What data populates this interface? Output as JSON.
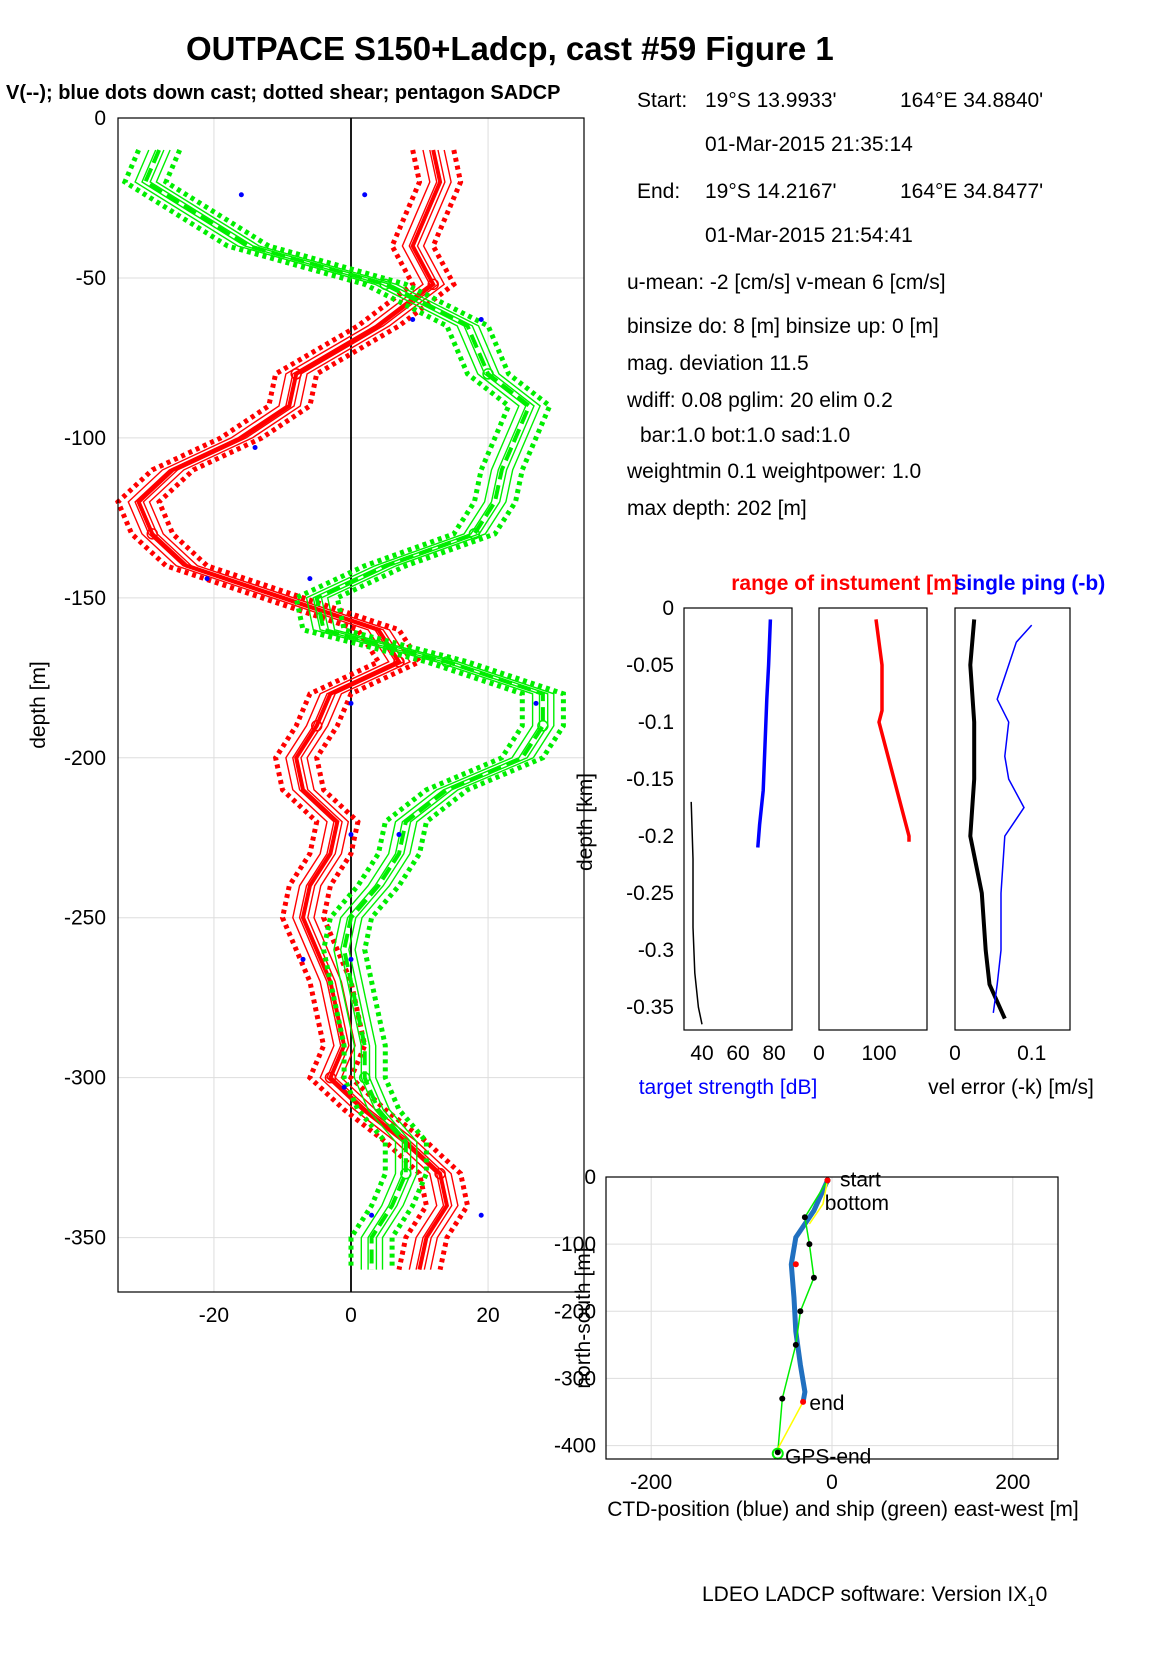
{
  "figure": {
    "title": "OUTPACE S150+Ladcp, cast #59  Figure 1",
    "subtitle": "V(--); blue dots down cast; dotted shear; pentagon SADCP",
    "footer_main": "LDEO LADCP software: Version IX",
    "footer_sub": "1",
    "footer_end": "0"
  },
  "info": {
    "start_label": "Start:",
    "start_lat": "19°S 13.9933'",
    "start_lon": "164°E 34.8840'",
    "start_time": "01-Mar-2015 21:35:14",
    "end_label": "End:",
    "end_lat": "19°S 14.2167'",
    "end_lon": "164°E 34.8477'",
    "end_time": "01-Mar-2015 21:54:41",
    "means": "u-mean:  -2 [cm/s]    v-mean   6 [cm/s]",
    "binsize": "binsize do: 8 [m]  binsize up:  0 [m]",
    "magdev": "mag. deviation 11.5",
    "wdiff": "wdiff: 0.08  pglim: 20  elim 0.2",
    "bar": "bar:1.0 bot:1.0 sad:1.0",
    "weight": "weightmin 0.1  weightpower: 1.0",
    "maxdepth": "max depth: 202 [m]"
  },
  "colors": {
    "u": "#ff0000",
    "v": "#00ee00",
    "blue": "#0000ff",
    "black": "#000000",
    "grid": "#dddddd",
    "yellow": "#ffff00",
    "ctd": "#2070c0"
  },
  "chart_data": [
    {
      "type": "line",
      "name": "velocity-profile",
      "ylabel": "depth [m]",
      "xlabel": "",
      "xlim": [
        -34,
        34
      ],
      "ylim": [
        -367,
        0
      ],
      "xticks": [
        "-20",
        "0",
        "20"
      ],
      "yticks": [
        "0",
        "-50",
        "-100",
        "-150",
        "-200",
        "-250",
        "-300",
        "-350"
      ],
      "depth": [
        -10,
        -20,
        -40,
        -52,
        -65,
        -80,
        -90,
        -100,
        -110,
        -120,
        -130,
        -140,
        -150,
        -160,
        -170,
        -180,
        -190,
        -200,
        -210,
        -220,
        -230,
        -240,
        -250,
        -260,
        -270,
        -280,
        -290,
        -300,
        -310,
        -320,
        -330,
        -340,
        -350,
        -360
      ],
      "series": [
        {
          "color": "#ff0000",
          "values": [
            12,
            13,
            9,
            12,
            4,
            -8,
            -9,
            -16,
            -26,
            -31,
            -29,
            -24,
            -10,
            4,
            7,
            -3,
            -5,
            -8,
            -7,
            -2,
            -3,
            -6,
            -7,
            -5,
            -3,
            -2,
            -1,
            -3,
            2,
            8,
            13,
            14,
            11,
            10
          ]
        },
        {
          "color": "#00ee00",
          "values": [
            -28,
            -30,
            -15,
            5,
            17,
            20,
            26,
            24,
            22,
            21,
            18,
            5,
            -5,
            -4,
            14,
            28,
            28,
            25,
            14,
            8,
            7,
            4,
            0,
            -1,
            0,
            1,
            2,
            2,
            4,
            8,
            8,
            6,
            3,
            3
          ]
        }
      ],
      "blue_dots": [
        [
          -16,
          -24
        ],
        [
          2,
          -24
        ],
        [
          9,
          -63
        ],
        [
          19,
          -63
        ],
        [
          -14,
          -103
        ],
        [
          -21,
          -144
        ],
        [
          -6,
          -144
        ],
        [
          0,
          -183
        ],
        [
          27,
          -183
        ],
        [
          0,
          -224
        ],
        [
          7,
          -224
        ],
        [
          -7,
          -263
        ],
        [
          0,
          -263
        ],
        [
          -1,
          -303
        ],
        [
          3,
          -343
        ],
        [
          19,
          -343
        ]
      ]
    },
    {
      "type": "line",
      "name": "target-strength",
      "xlabel": "target strength [dB]",
      "ylabel": "depth [km]",
      "xlim": [
        30,
        90
      ],
      "ylim": [
        -0.37,
        0
      ],
      "xticks": [
        "40",
        "60",
        "80"
      ],
      "yticks": [
        "0",
        "-0.05",
        "-0.1",
        "-0.15",
        "-0.2",
        "-0.25",
        "-0.3",
        "-0.35"
      ],
      "series": [
        {
          "color": "#0000ff",
          "depth": [
            -0.01,
            -0.05,
            -0.08,
            -0.12,
            -0.16,
            -0.19,
            -0.21
          ],
          "values": [
            78,
            77,
            76,
            75,
            74,
            72,
            71
          ]
        },
        {
          "color": "#000000",
          "depth": [
            -0.17,
            -0.22,
            -0.28,
            -0.32,
            -0.35,
            -0.365
          ],
          "values": [
            34,
            35,
            35,
            36,
            38,
            40
          ]
        }
      ]
    },
    {
      "type": "line",
      "name": "range-of-instrument",
      "title": "range of instument [m]",
      "xlim": [
        0,
        180
      ],
      "ylim": [
        -0.37,
        0
      ],
      "xticks": [
        "0",
        "100"
      ],
      "series": [
        {
          "color": "#ff0000",
          "depth": [
            -0.01,
            -0.03,
            -0.05,
            -0.09,
            -0.1,
            -0.12,
            -0.15,
            -0.18,
            -0.2,
            -0.205
          ],
          "values": [
            95,
            100,
            105,
            105,
            100,
            110,
            125,
            140,
            150,
            150
          ]
        }
      ]
    },
    {
      "type": "line",
      "name": "velocity-error",
      "title": "single ping (-b)",
      "xlabel": "vel error (-k) [m/s]",
      "xlim": [
        0,
        0.15
      ],
      "ylim": [
        -0.37,
        0
      ],
      "xticks": [
        "0",
        "0.1"
      ],
      "series": [
        {
          "color": "#000000",
          "depth": [
            -0.01,
            -0.05,
            -0.1,
            -0.15,
            -0.2,
            -0.25,
            -0.3,
            -0.33,
            -0.36
          ],
          "values": [
            0.025,
            0.02,
            0.025,
            0.025,
            0.02,
            0.035,
            0.04,
            0.045,
            0.065
          ]
        },
        {
          "color": "#0000ff",
          "depth": [
            -0.015,
            -0.03,
            -0.05,
            -0.08,
            -0.1,
            -0.13,
            -0.15,
            -0.175,
            -0.2,
            -0.25,
            -0.3,
            -0.33,
            -0.355
          ],
          "values": [
            0.1,
            0.08,
            0.07,
            0.055,
            0.07,
            0.065,
            0.07,
            0.09,
            0.065,
            0.06,
            0.06,
            0.055,
            0.05
          ]
        }
      ]
    },
    {
      "type": "line",
      "name": "ctd-position",
      "xlabel": "CTD-position (blue) and ship (green) east-west [m]",
      "ylabel": "north-south [m]",
      "xlim": [
        -250,
        250
      ],
      "ylim": [
        -420,
        0
      ],
      "xticks": [
        "-200",
        "0",
        "200"
      ],
      "yticks": [
        "0",
        "-100",
        "-200",
        "-300",
        "-400"
      ],
      "series": [
        {
          "color": "#2070c0",
          "x": [
            -5,
            -20,
            -40,
            -45,
            -42,
            -40,
            -35,
            -30,
            -32
          ],
          "y": [
            -5,
            -50,
            -90,
            -130,
            -180,
            -230,
            -280,
            -320,
            -335
          ]
        },
        {
          "color": "#00ee00",
          "x": [
            -5,
            -30,
            -25,
            -20,
            -35,
            -40,
            -55,
            -60
          ],
          "y": [
            -5,
            -60,
            -100,
            -150,
            -200,
            -250,
            -330,
            -410
          ]
        }
      ],
      "annotations": [
        "start",
        "bottom",
        "end",
        "GPS-end"
      ]
    }
  ]
}
